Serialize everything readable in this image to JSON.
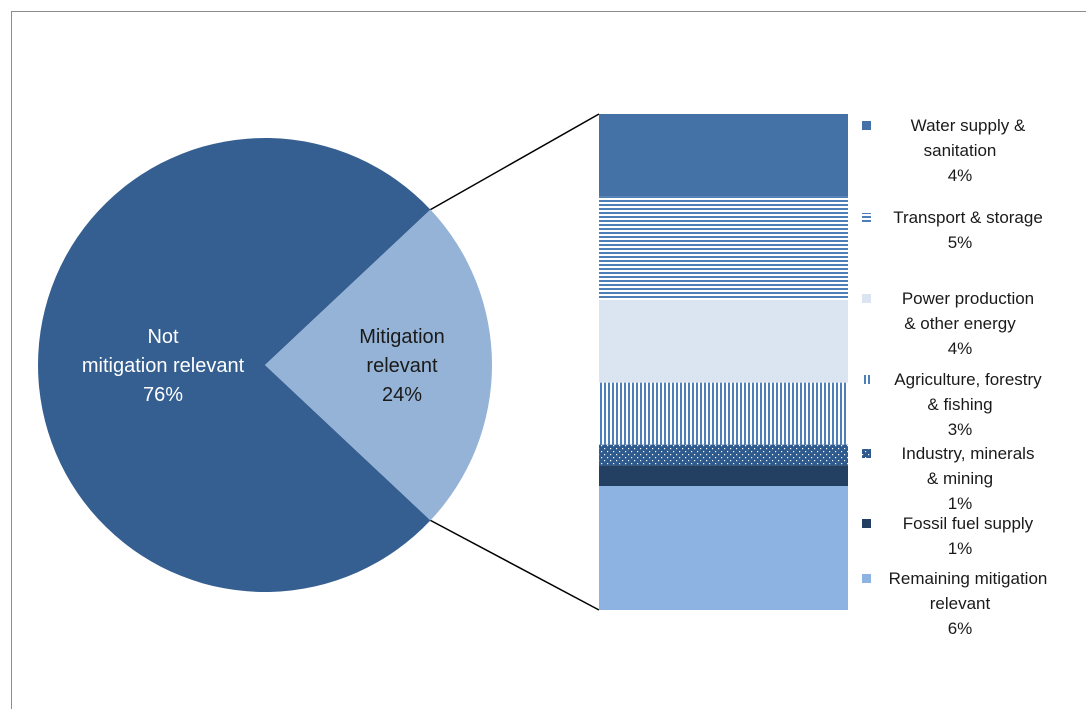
{
  "chart_data": {
    "type": "pie",
    "pie": {
      "slices": [
        {
          "label": "Not mitigation relevant",
          "label_lines": [
            "Not",
            "mitigation relevant",
            "76%"
          ],
          "value": 76,
          "color": "#355f91"
        },
        {
          "label": "Mitigation relevant",
          "label_lines": [
            "Mitigation",
            "relevant",
            "24%"
          ],
          "value": 24,
          "color": "#95b3d7"
        }
      ]
    },
    "breakdown": {
      "of": "Mitigation relevant",
      "type": "stacked-bar",
      "unit": "%",
      "segments": [
        {
          "name": "Water supply & sanitation",
          "legend_lines": [
            "Water supply &",
            "sanitation",
            "4%"
          ],
          "value": 4,
          "color": "#4471a6",
          "pattern": "solid"
        },
        {
          "name": "Transport & storage",
          "legend_lines": [
            "Transport & storage",
            "5%"
          ],
          "value": 5,
          "color": "#4f7fb9",
          "pattern": "horizontal-lines"
        },
        {
          "name": "Power production & other energy",
          "legend_lines": [
            "Power production",
            "& other energy",
            "4%"
          ],
          "value": 4,
          "color": "#dbe5f1",
          "pattern": "solid"
        },
        {
          "name": "Agriculture, forestry & fishing",
          "legend_lines": [
            "Agriculture, forestry",
            "& fishing",
            "3%"
          ],
          "value": 3,
          "color": "#4f7fb9",
          "pattern": "vertical-lines"
        },
        {
          "name": "Industry, minerals & mining",
          "legend_lines": [
            "Industry, minerals",
            "& mining",
            "1%"
          ],
          "value": 1,
          "color": "#2e5a8e",
          "pattern": "dots"
        },
        {
          "name": "Fossil fuel supply",
          "legend_lines": [
            "Fossil fuel supply",
            "1%"
          ],
          "value": 1,
          "color": "#233f61",
          "pattern": "solid"
        },
        {
          "name": "Remaining mitigation relevant",
          "legend_lines": [
            "Remaining mitigation",
            "relevant",
            "6%"
          ],
          "value": 6,
          "color": "#8db3e2",
          "pattern": "solid"
        }
      ]
    },
    "legend_placement": "right"
  }
}
